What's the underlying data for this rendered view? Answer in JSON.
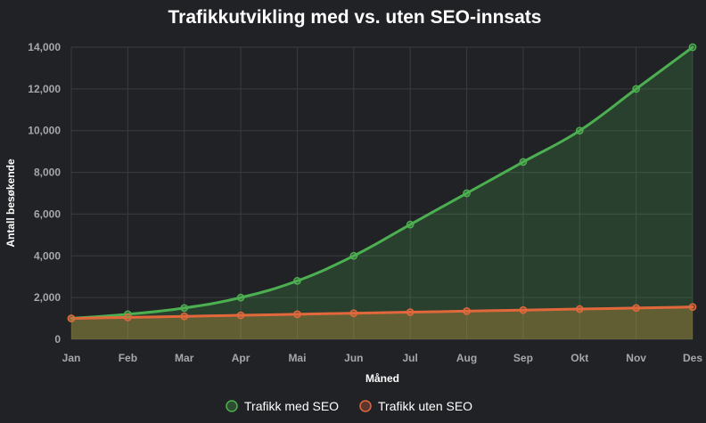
{
  "chart_data": {
    "type": "area",
    "title": "Trafikkutvikling med vs. uten SEO-innsats",
    "xlabel": "Måned",
    "ylabel": "Antall besøkende",
    "categories": [
      "Jan",
      "Feb",
      "Mar",
      "Apr",
      "Mai",
      "Jun",
      "Jul",
      "Aug",
      "Sep",
      "Okt",
      "Nov",
      "Des"
    ],
    "ylim": [
      0,
      14000
    ],
    "yticks": [
      "0",
      "2,000",
      "4,000",
      "6,000",
      "8,000",
      "10,000",
      "12,000",
      "14,000"
    ],
    "grid": true,
    "legend_position": "bottom",
    "series": [
      {
        "name": "Trafikk med SEO",
        "color": "#4caf50",
        "fill": "rgba(76,175,80,0.22)",
        "values": [
          1000,
          1200,
          1500,
          2000,
          2800,
          4000,
          5500,
          7000,
          8500,
          10000,
          12000,
          14000
        ]
      },
      {
        "name": "Trafikk uten SEO",
        "color": "#e2683c",
        "fill": "rgba(201,151,62,0.35)",
        "values": [
          1000,
          1050,
          1100,
          1150,
          1200,
          1250,
          1300,
          1350,
          1400,
          1450,
          1500,
          1550
        ]
      }
    ]
  }
}
